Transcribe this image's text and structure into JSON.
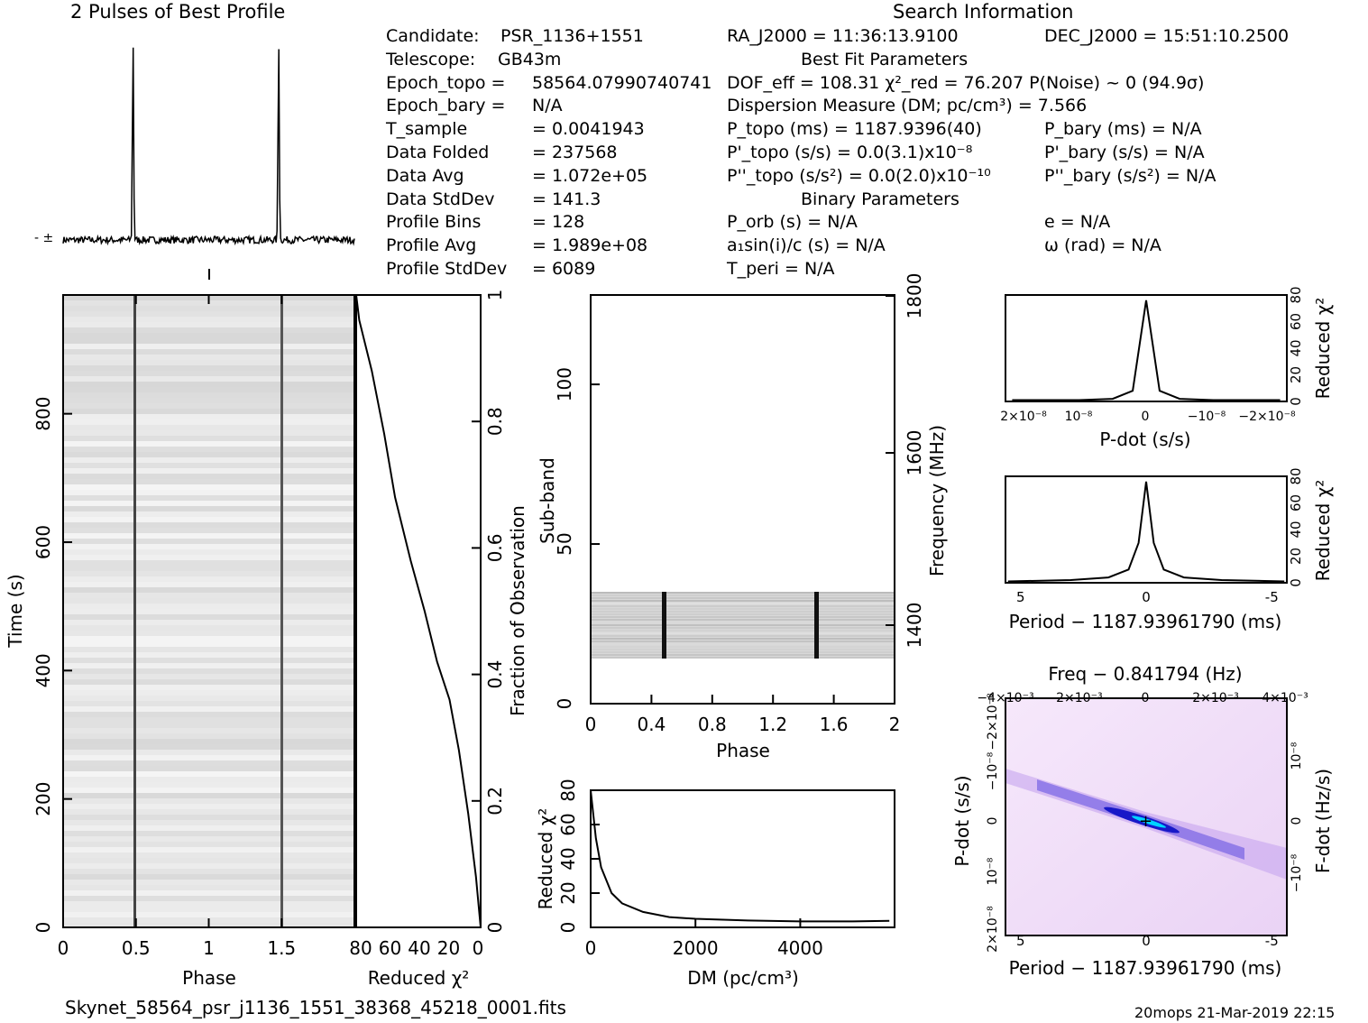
{
  "profile_title": "2 Pulses of Best Profile",
  "search_title": "Search Information",
  "info_left": [
    {
      "label": "Candidate:",
      "value": "PSR_1136+1551"
    },
    {
      "label": "Telescope:",
      "value": "GB43m"
    },
    {
      "label": "Epoch_topo =",
      "value": "58564.07990740741"
    },
    {
      "label": "Epoch_bary =",
      "value": "N/A"
    },
    {
      "label": "T_sample",
      "value": "= 0.0041943"
    },
    {
      "label": "Data Folded",
      "value": "= 237568"
    },
    {
      "label": "Data Avg",
      "value": "= 1.072e+05"
    },
    {
      "label": "Data StdDev",
      "value": "= 141.3"
    },
    {
      "label": "Profile Bins",
      "value": "= 128"
    },
    {
      "label": "Profile Avg",
      "value": "= 1.989e+08"
    },
    {
      "label": "Profile StdDev",
      "value": "= 6089"
    }
  ],
  "info_mid": [
    "RA_J2000 = 11:36:13.9100",
    "Best Fit Parameters",
    "DOF_eff = 108.31  χ²_red = 76.207  P(Noise) ~ 0   (94.9σ)",
    "Dispersion Measure (DM; pc/cm³) = 7.566",
    "P_topo (ms) =  1187.9396(40)",
    "P'_topo (s/s) = 0.0(3.1)x10⁻⁸",
    "P''_topo (s/s²) = 0.0(2.0)x10⁻¹⁰",
    "Binary Parameters",
    "P_orb (s) = N/A",
    "a₁sin(i)/c (s) = N/A",
    "T_peri = N/A"
  ],
  "info_right": [
    "DEC_J2000 = 15:51:10.2500",
    "P_bary (ms) = N/A",
    "P'_bary (s/s) = N/A",
    "P''_bary (s/s²) = N/A",
    "e = N/A",
    "ω (rad) = N/A"
  ],
  "footer_file": "Skynet_58564_psr_j1136_1551_38368_45218_0001.fits",
  "footer_stamp": "20mops 21-Mar-2019 22:15",
  "chart_data": [
    {
      "type": "line",
      "title": "2 Pulses of Best Profile",
      "x": [
        0,
        0.46,
        0.48,
        0.5,
        0.96,
        1.0,
        1.46,
        1.48,
        1.5,
        1.96,
        2.0
      ],
      "y": [
        0.02,
        0.02,
        1.0,
        0.02,
        0.02,
        0.02,
        0.02,
        1.0,
        0.02,
        0.02,
        0.02
      ],
      "note": "normalized intensity; pulse peaks near phase 0.48 and 1.48"
    },
    {
      "type": "heatmap",
      "xlabel": "Phase",
      "ylabel": "Time (s)",
      "y2label": "Fraction of Observation",
      "xlim": [
        0,
        2
      ],
      "ylim": [
        0,
        985
      ],
      "x_ticks": [
        0,
        0.5,
        1,
        1.5
      ],
      "y_ticks": [
        0,
        200,
        400,
        600,
        800
      ],
      "y2_ticks": [
        0,
        0.2,
        0.4,
        0.6,
        0.8,
        1
      ],
      "pulse_phases": [
        0.48,
        1.48
      ]
    },
    {
      "type": "line",
      "xlabel": "Reduced χ²",
      "x_ticks": [
        80,
        60,
        40,
        20,
        0
      ],
      "x": [
        80,
        78,
        70,
        62,
        55,
        45,
        36,
        28,
        20,
        14,
        8,
        3,
        0
      ],
      "y": [
        1.0,
        0.96,
        0.88,
        0.78,
        0.68,
        0.58,
        0.5,
        0.42,
        0.36,
        0.28,
        0.18,
        0.08,
        0.0
      ],
      "note": "cumulative reduced chi-squared versus fraction of observation"
    },
    {
      "type": "heatmap",
      "xlabel": "Phase",
      "ylabel": "Sub-band",
      "y2label": "Frequency (MHz)",
      "xlim": [
        0,
        2
      ],
      "ylim": [
        0,
        128
      ],
      "x_ticks": [
        0,
        0.4,
        0.8,
        1.2,
        1.6,
        2
      ],
      "y_ticks": [
        0,
        50,
        100
      ],
      "y2_ticks": [
        1400,
        1600,
        1800
      ],
      "active_subbands": [
        14,
        35
      ],
      "pulse_phases": [
        0.48,
        1.48
      ]
    },
    {
      "type": "line",
      "xlabel": "DM (pc/cm³)",
      "ylabel": "Reduced χ²",
      "x_ticks": [
        0,
        2000,
        4000
      ],
      "y_ticks": [
        0,
        20,
        40,
        60,
        80
      ],
      "x": [
        0,
        100,
        200,
        400,
        600,
        1000,
        1500,
        2000,
        3000,
        4000,
        5000,
        5700
      ],
      "y": [
        80,
        52,
        35,
        20,
        14,
        9,
        6,
        5,
        4,
        3.5,
        3.5,
        3.8
      ]
    },
    {
      "type": "line",
      "xlabel": "P-dot (s/s)",
      "ylabel": "Reduced χ²",
      "x_ticks": [
        "2×10⁻⁸",
        "10⁻⁸",
        "0",
        "−10⁻⁸",
        "−2×10⁻⁸"
      ],
      "y_ticks": [
        0,
        20,
        40,
        60,
        80
      ],
      "x": [
        2e-08,
        1e-08,
        5e-09,
        2e-09,
        0,
        -2e-09,
        -5e-09,
        -1e-08,
        -2e-08
      ],
      "y": [
        1,
        1,
        2,
        8,
        76,
        8,
        2,
        1,
        1
      ]
    },
    {
      "type": "line",
      "xlabel": "Period − 1187.93961790 (ms)",
      "ylabel": "Reduced χ²",
      "x_ticks": [
        5,
        0,
        -5
      ],
      "y_ticks": [
        0,
        20,
        40,
        60,
        80
      ],
      "x": [
        5.5,
        3,
        1.5,
        0.7,
        0.3,
        0,
        -0.3,
        -0.7,
        -1.5,
        -3,
        -5.5
      ],
      "y": [
        1,
        2,
        4,
        10,
        30,
        76,
        30,
        10,
        4,
        2,
        1
      ]
    },
    {
      "type": "heatmap",
      "title": "Freq − 0.841794 (Hz)",
      "xlabel": "Period − 1187.93961790 (ms)",
      "ylabel": "P-dot (s/s)",
      "y2label": "F-dot (Hz/s)",
      "x_ticks": [
        5,
        0,
        -5
      ],
      "top_ticks": [
        "−4×10⁻³",
        "−2×10⁻³",
        "0",
        "2×10⁻³",
        "4×10⁻³"
      ],
      "y_ticks": [
        "2×10⁻⁸",
        "10⁻⁸",
        "0",
        "−10⁻⁸",
        "−2×10⁻⁸"
      ],
      "y2_ticks": [
        "−10⁻⁸",
        "0",
        "10⁻⁸"
      ]
    }
  ]
}
